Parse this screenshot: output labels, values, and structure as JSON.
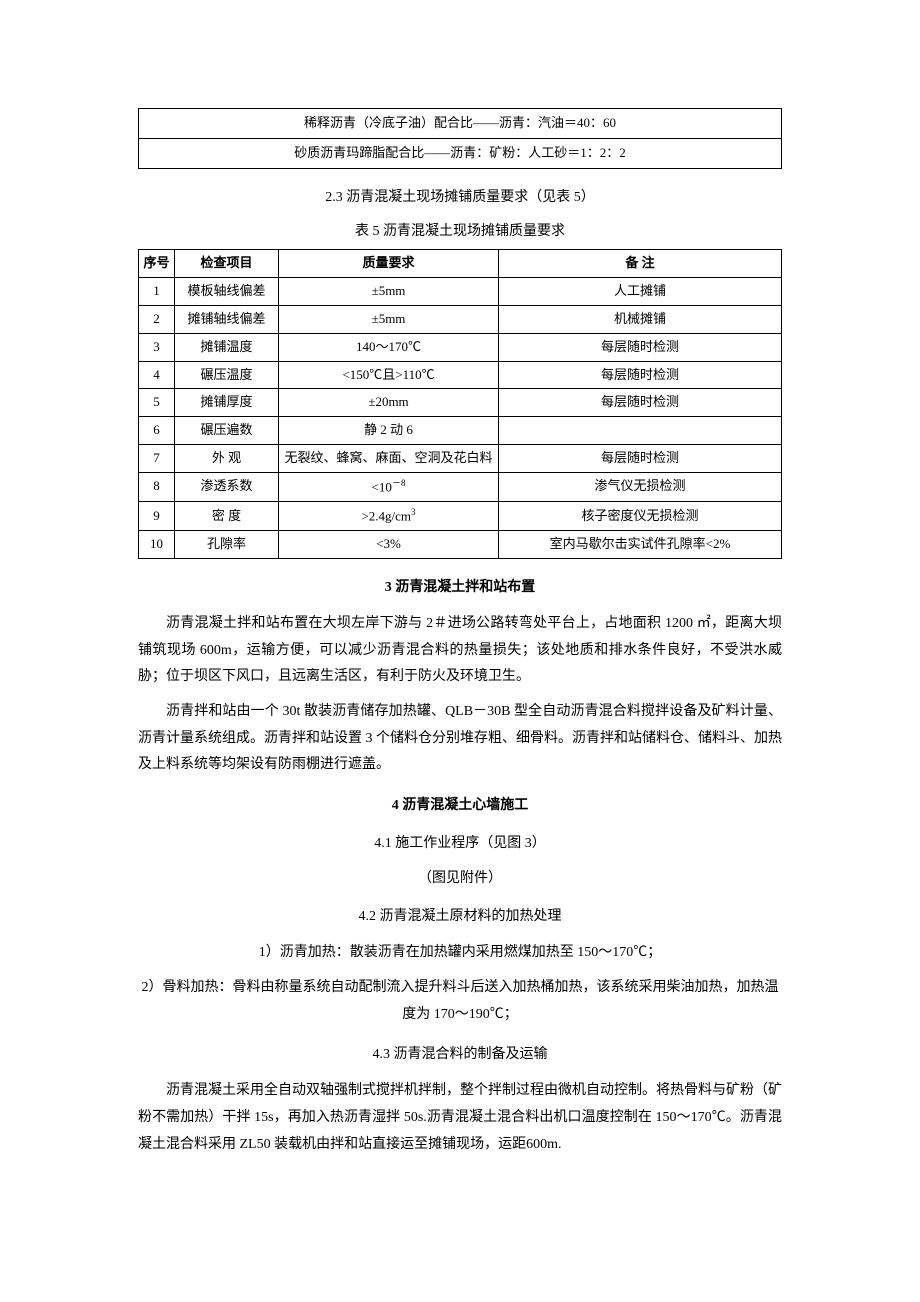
{
  "ratio_table": {
    "rows": [
      "稀释沥青（冷底子油）配合比——沥青：汽油＝40：60",
      "砂质沥青玛蹄脂配合比——沥青：矿粉：人工砂＝1：2：2"
    ]
  },
  "sec23_title": "2.3 沥青混凝土现场摊铺质量要求（见表 5）",
  "table5_caption": "表 5  沥青混凝土现场摊铺质量要求",
  "table5": {
    "headers": {
      "seq": "序号",
      "item": "检查项目",
      "req": "质量要求",
      "remark": "备  注"
    },
    "rows": [
      {
        "seq": "1",
        "item": "模板轴线偏差",
        "req": "±5mm",
        "remark": "人工摊铺"
      },
      {
        "seq": "2",
        "item": "摊铺轴线偏差",
        "req": "±5mm",
        "remark": "机械摊铺"
      },
      {
        "seq": "3",
        "item": "摊铺温度",
        "req": "140～170℃",
        "remark": "每层随时检测"
      },
      {
        "seq": "4",
        "item": "碾压温度",
        "req": "<150℃且>110℃",
        "remark": "每层随时检测"
      },
      {
        "seq": "5",
        "item": "摊铺厚度",
        "req": "±20mm",
        "remark": "每层随时检测"
      },
      {
        "seq": "6",
        "item": "碾压遍数",
        "req": "静 2 动 6",
        "remark": ""
      },
      {
        "seq": "7",
        "item": "外  观",
        "req": "无裂纹、蜂窝、麻面、空洞及花白料",
        "remark": "每层随时检测"
      },
      {
        "seq": "8",
        "item": "渗透系数",
        "req_html": "<10<sup>－8</sup>",
        "remark": "渗气仪无损检测"
      },
      {
        "seq": "9",
        "item": "密  度",
        "req_html": ">2.4g/cm<sup>3</sup>",
        "remark": "核子密度仪无损检测"
      },
      {
        "seq": "10",
        "item": "孔隙率",
        "req": "<3%",
        "remark": "室内马歇尔击实试件孔隙率<2%"
      }
    ]
  },
  "sec3_title": "3  沥青混凝土拌和站布置",
  "sec3_p1_html": "沥青混凝土拌和站布置在大坝左岸下游与 2＃进场公路转弯处平台上，占地面积 1200 ㎡，距离大坝铺筑现场 600m，运输方便，可以减少沥青混合料的热量损失；该处地质和排水条件良好，不受洪水威胁；位于坝区下风口，且远离生活区，有利于防火及环境卫生。",
  "sec3_p2": "沥青拌和站由一个 30t 散装沥青储存加热罐、QLB－30B 型全自动沥青混合料搅拌设备及矿料计量、沥青计量系统组成。沥青拌和站设置 3 个储料仓分别堆存粗、细骨料。沥青拌和站储料仓、储料斗、加热及上料系统等均架设有防雨棚进行遮盖。",
  "sec4_title": "4  沥青混凝土心墙施工",
  "sec41_title": "4.1  施工作业程序（见图 3）",
  "sec41_aux": "（图见附件）",
  "sec42_title": "4.2  沥青混凝土原材料的加热处理",
  "sec42_p1": "1）沥青加热：散装沥青在加热罐内采用燃煤加热至 150～170℃；",
  "sec42_p2": "2）骨料加热：骨料由称量系统自动配制流入提升料斗后送入加热桶加热，该系统采用柴油加热，加热温度为 170～190℃；",
  "sec43_title": "4.3  沥青混合料的制备及运输",
  "sec43_p1": "沥青混凝土采用全自动双轴强制式搅拌机拌制，整个拌制过程由微机自动控制。将热骨料与矿粉（矿粉不需加热）干拌 15s，再加入热沥青湿拌 50s.沥青混凝土混合料出机口温度控制在 150～170℃。沥青混凝土混合料采用 ZL50 装载机由拌和站直接运至摊铺现场，运距600m."
}
